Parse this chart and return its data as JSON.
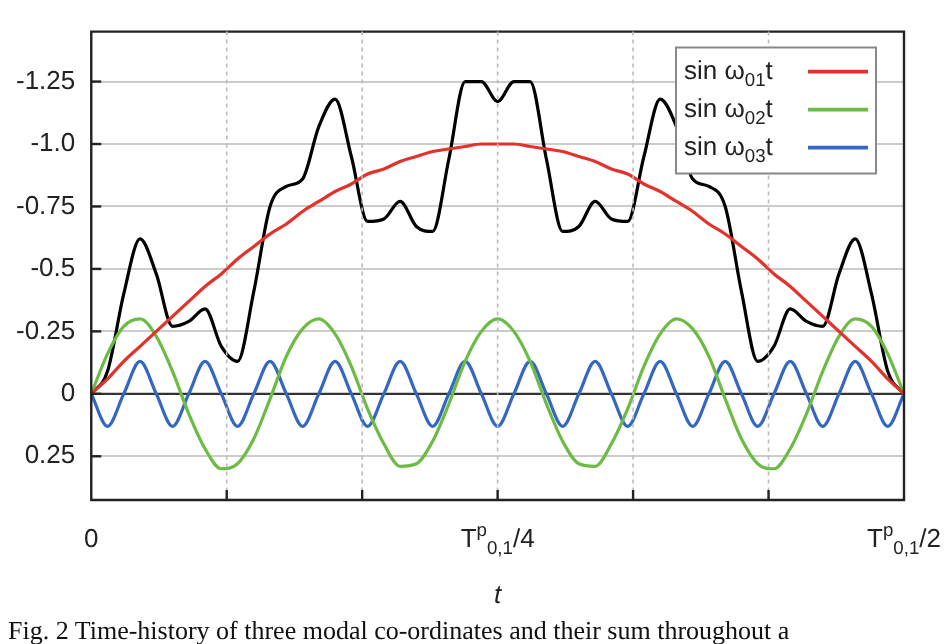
{
  "chart_data": {
    "type": "line",
    "xlabel": "t",
    "categories": [
      "0",
      null,
      null,
      null,
      null,
      null,
      null,
      null,
      null,
      null,
      null,
      null,
      null,
      null,
      null,
      null,
      null,
      null,
      null,
      null,
      null,
      null,
      null,
      null,
      null,
      "T$^{p}$$_{0,1}$/4",
      null,
      null,
      null,
      null,
      null,
      null,
      null,
      null,
      null,
      null,
      null,
      null,
      null,
      null,
      null,
      null,
      null,
      null,
      null,
      null,
      null,
      null,
      null,
      null,
      "T$^{p}$$_{0,1}$/2"
    ],
    "series": [
      {
        "name": "sin ω$_{01}$t",
        "color": "#e3312b",
        "values": [
          0,
          -0.06,
          -0.13,
          -0.19,
          -0.25,
          -0.31,
          -0.37,
          -0.43,
          -0.48,
          -0.54,
          -0.59,
          -0.64,
          -0.68,
          -0.73,
          -0.77,
          -0.81,
          -0.84,
          -0.88,
          -0.9,
          -0.93,
          -0.95,
          -0.97,
          -0.98,
          -0.99,
          -1,
          -1,
          -1,
          -0.99,
          -0.98,
          -0.97,
          -0.95,
          -0.93,
          -0.9,
          -0.88,
          -0.84,
          -0.81,
          -0.77,
          -0.73,
          -0.68,
          -0.64,
          -0.59,
          -0.54,
          -0.48,
          -0.43,
          -0.37,
          -0.31,
          -0.25,
          -0.19,
          -0.13,
          -0.06,
          0
        ]
      },
      {
        "name": "sin ω$_{02}$t",
        "color": "#6cbb45",
        "values": [
          0,
          -0.16,
          -0.27,
          -0.3,
          -0.23,
          -0.09,
          0.08,
          0.22,
          0.3,
          0.28,
          0.18,
          0.02,
          -0.15,
          -0.26,
          -0.3,
          -0.24,
          -0.11,
          0.06,
          0.2,
          0.29,
          0.28,
          0.19,
          0.04,
          -0.13,
          -0.25,
          -0.3,
          -0.25,
          -0.13,
          0.04,
          0.19,
          0.28,
          0.29,
          0.2,
          0.06,
          -0.11,
          -0.24,
          -0.3,
          -0.26,
          -0.15,
          0.02,
          0.18,
          0.28,
          0.3,
          0.22,
          0.08,
          -0.09,
          -0.23,
          -0.3,
          -0.27,
          -0.16,
          0
        ]
      },
      {
        "name": "sin ω$_{03}$t",
        "color": "#3468c0",
        "values": [
          0,
          0.13,
          0,
          -0.13,
          0,
          0.13,
          0,
          -0.13,
          0,
          0.13,
          0,
          -0.13,
          0,
          0.13,
          0,
          -0.13,
          0,
          0.13,
          0,
          -0.13,
          0,
          0.13,
          0,
          -0.13,
          0,
          0.13,
          0,
          -0.13,
          0,
          0.13,
          0,
          -0.13,
          0,
          0.13,
          0,
          -0.13,
          0,
          0.13,
          0,
          -0.13,
          0,
          0.13,
          0,
          -0.13,
          0,
          0.13,
          0,
          -0.13,
          0,
          0.13,
          0
        ]
      },
      {
        "color": "#000000",
        "values": [
          0,
          -0.09,
          -0.4,
          -0.62,
          -0.48,
          -0.27,
          -0.29,
          -0.34,
          -0.19,
          -0.13,
          -0.41,
          -0.75,
          -0.83,
          -0.86,
          -1.07,
          -1.18,
          -0.95,
          -0.69,
          -0.7,
          -0.77,
          -0.67,
          -0.65,
          -0.94,
          -1.25,
          -1.25,
          -1.17,
          -1.25,
          -1.25,
          -0.94,
          -0.65,
          -0.67,
          -0.77,
          -0.7,
          -0.69,
          -0.95,
          -1.18,
          -1.07,
          -0.86,
          -0.83,
          -0.75,
          -0.41,
          -0.13,
          -0.19,
          -0.34,
          -0.29,
          -0.27,
          -0.48,
          -0.62,
          -0.4,
          -0.09,
          0
        ]
      }
    ],
    "ylim": [
      0.425,
      -1.45
    ],
    "yticks": [
      -1.25,
      {
        "value": -1,
        "label": "-1.0"
      },
      -0.75,
      -0.5,
      -0.25,
      0,
      0.25
    ],
    "ref_lines": [
      {
        "axis": "y",
        "value": 0,
        "color": "#333333"
      }
    ],
    "grid": true,
    "legend": "top right",
    "marker": "none",
    "line_style": "solid",
    "annotations": [
      "Fig. 2 Time-history of three modal co-ordinates and their sum throughout a"
    ]
  }
}
